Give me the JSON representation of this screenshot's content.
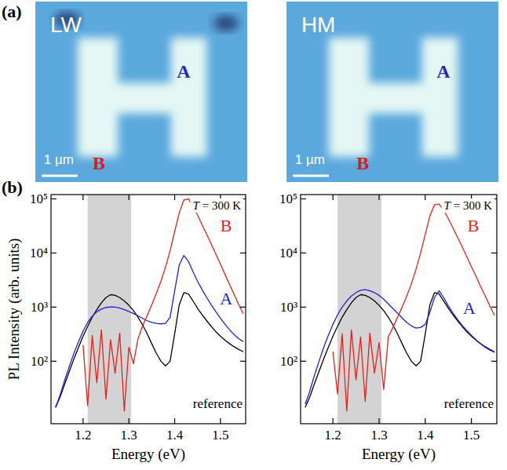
{
  "panel_labels": [
    "(a)",
    "(b)"
  ],
  "maps": [
    {
      "title": "LW",
      "scale_bar": "1 µm",
      "points": [
        {
          "label": "A",
          "color": "#2a2ab8"
        },
        {
          "label": "B",
          "color": "#d81c1c"
        }
      ]
    },
    {
      "title": "HM",
      "scale_bar": "1 µm",
      "points": [
        {
          "label": "A",
          "color": "#2a2ab8"
        },
        {
          "label": "B",
          "color": "#d81c1c"
        }
      ]
    }
  ],
  "chart_data": [
    {
      "type": "line",
      "xlabel": "Energy (eV)",
      "ylabel": "PL Intensity (arb. units)",
      "annotation": "T = 300 K",
      "log": "y",
      "xlim": [
        1.13,
        1.555
      ],
      "xticks": [
        1.2,
        1.3,
        1.4,
        1.5
      ],
      "ylim": [
        7,
        120000
      ],
      "yticks": [
        {
          "value": 100,
          "label": "10²"
        },
        {
          "value": 1000,
          "label": "10³"
        },
        {
          "value": 10000,
          "label": "10⁴"
        },
        {
          "value": 100000,
          "label": "10⁵"
        }
      ],
      "shaded_region": [
        1.21,
        1.305
      ],
      "x": [
        1.14,
        1.15,
        1.16,
        1.17,
        1.18,
        1.19,
        1.2,
        1.21,
        1.22,
        1.23,
        1.24,
        1.25,
        1.26,
        1.27,
        1.28,
        1.29,
        1.3,
        1.31,
        1.32,
        1.33,
        1.34,
        1.35,
        1.36,
        1.37,
        1.38,
        1.39,
        1.4,
        1.41,
        1.42,
        1.43,
        1.44,
        1.45,
        1.46,
        1.47,
        1.48,
        1.49,
        1.5,
        1.51,
        1.52,
        1.53,
        1.54,
        1.55
      ],
      "series": [
        {
          "name": "reference",
          "color": "#000000",
          "values": [
            14,
            22,
            38,
            65,
            110,
            180,
            290,
            440,
            650,
            900,
            1200,
            1500,
            1700,
            1650,
            1500,
            1300,
            1080,
            860,
            650,
            470,
            320,
            210,
            140,
            100,
            82,
            100,
            320,
            1100,
            1850,
            1750,
            1300,
            950,
            720,
            560,
            440,
            350,
            290,
            245,
            210,
            185,
            165,
            150
          ]
        },
        {
          "name": "A",
          "color": "#1f1fe0",
          "values": [
            14,
            24,
            45,
            80,
            140,
            230,
            360,
            520,
            680,
            820,
            920,
            980,
            1010,
            1000,
            960,
            900,
            830,
            760,
            690,
            620,
            560,
            520,
            500,
            490,
            500,
            650,
            2000,
            6000,
            9000,
            7000,
            4500,
            3000,
            2100,
            1500,
            1100,
            820,
            620,
            480,
            380,
            310,
            260,
            230
          ]
        },
        {
          "name": "B",
          "color": "#e8201a",
          "values": [
            null,
            null,
            null,
            null,
            null,
            null,
            200,
            15,
            300,
            40,
            380,
            20,
            250,
            60,
            330,
            12,
            180,
            90,
            260,
            450,
            700,
            1100,
            1800,
            3000,
            5500,
            11000,
            25000,
            55000,
            95000,
            100000,
            75000,
            50000,
            33000,
            22000,
            14500,
            9500,
            6200,
            4000,
            2600,
            1700,
            1100,
            750
          ]
        }
      ]
    },
    {
      "type": "line",
      "xlabel": "Energy (eV)",
      "annotation": "T = 300 K",
      "log": "y",
      "xlim": [
        1.13,
        1.555
      ],
      "xticks": [
        1.2,
        1.3,
        1.4,
        1.5
      ],
      "ylim": [
        7,
        120000
      ],
      "yticks": [
        {
          "value": 100,
          "label": "10²"
        },
        {
          "value": 1000,
          "label": "10³"
        },
        {
          "value": 10000,
          "label": "10⁴"
        },
        {
          "value": 100000,
          "label": "10⁵"
        }
      ],
      "shaded_region": [
        1.21,
        1.305
      ],
      "x": [
        1.14,
        1.15,
        1.16,
        1.17,
        1.18,
        1.19,
        1.2,
        1.21,
        1.22,
        1.23,
        1.24,
        1.25,
        1.26,
        1.27,
        1.28,
        1.29,
        1.3,
        1.31,
        1.32,
        1.33,
        1.34,
        1.35,
        1.36,
        1.37,
        1.38,
        1.39,
        1.4,
        1.41,
        1.42,
        1.43,
        1.44,
        1.45,
        1.46,
        1.47,
        1.48,
        1.49,
        1.5,
        1.51,
        1.52,
        1.53,
        1.54,
        1.55
      ],
      "series": [
        {
          "name": "reference",
          "color": "#000000",
          "values": [
            14,
            22,
            38,
            65,
            110,
            180,
            290,
            440,
            650,
            900,
            1200,
            1500,
            1700,
            1650,
            1500,
            1300,
            1080,
            860,
            650,
            470,
            320,
            210,
            140,
            100,
            82,
            100,
            320,
            1100,
            1850,
            1750,
            1300,
            950,
            720,
            560,
            440,
            350,
            290,
            245,
            210,
            185,
            165,
            150
          ]
        },
        {
          "name": "A",
          "color": "#1f1fe0",
          "values": [
            16,
            28,
            55,
            100,
            180,
            300,
            480,
            720,
            1000,
            1300,
            1600,
            1850,
            2050,
            2100,
            2000,
            1850,
            1650,
            1400,
            1150,
            940,
            770,
            630,
            520,
            450,
            410,
            420,
            480,
            800,
            1500,
            2000,
            1500,
            1050,
            780,
            590,
            460,
            370,
            300,
            250,
            210,
            180,
            160,
            145
          ]
        },
        {
          "name": "B",
          "color": "#e8201a",
          "values": [
            null,
            null,
            null,
            null,
            null,
            null,
            150,
            25,
            320,
            12,
            380,
            45,
            280,
            18,
            330,
            60,
            220,
            30,
            280,
            420,
            650,
            1000,
            1600,
            2700,
            5000,
            10000,
            22000,
            48000,
            78000,
            80000,
            62000,
            43000,
            29000,
            19500,
            13000,
            8500,
            5600,
            3700,
            2400,
            1600,
            1050,
            700
          ]
        }
      ]
    }
  ]
}
